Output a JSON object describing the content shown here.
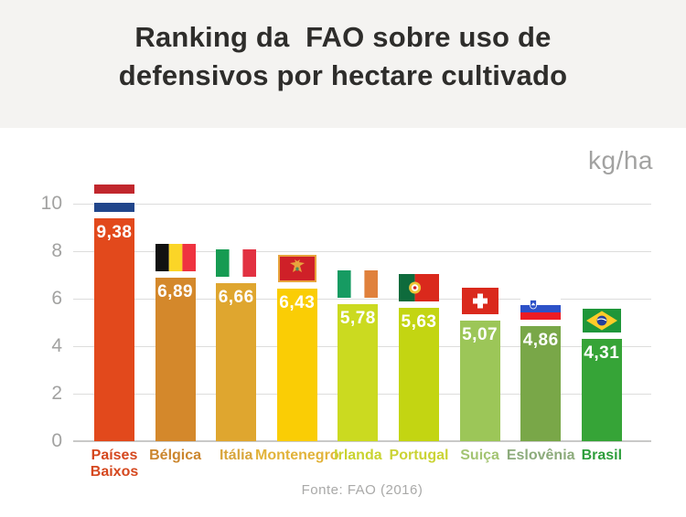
{
  "header": {
    "title_line1": "Ranking da  FAO sobre uso de",
    "title_line2": "defensivos por hectare cultivado"
  },
  "chart": {
    "unit_label": "kg/ha",
    "source": "Fonte: FAO (2016)"
  },
  "colors": {
    "header_bg": "#F4F3F1",
    "title_text": "#2E2D2B",
    "muted_text": "#A2A2A1",
    "gridline": "#DDDDDC",
    "axis_line": "#C9C9C8",
    "value_text": "#FFFFFF"
  },
  "chart_data": {
    "type": "bar",
    "title": "Ranking da FAO sobre uso de defensivos por hectare cultivado",
    "unit": "kg/ha",
    "source": "Fonte: FAO (2016)",
    "xlabel": "",
    "ylabel": "kg/ha",
    "ylim": [
      0,
      10
    ],
    "yticks": [
      10,
      8,
      6,
      4,
      2,
      0
    ],
    "grid": true,
    "legend": false,
    "categories": [
      "Países Baixos",
      "Bélgica",
      "Itália",
      "Montenegro",
      "Irlanda",
      "Portugal",
      "Suiça",
      "Eslovênia",
      "Brasil"
    ],
    "values": [
      9.38,
      6.89,
      6.66,
      6.43,
      5.78,
      5.63,
      5.07,
      4.86,
      4.31
    ],
    "bars": [
      {
        "id": "paises-baixos",
        "label": "Países Baixos",
        "value": 9.38,
        "value_label": "9,38",
        "bar_color": "#E2491C",
        "label_color": "#D5481F",
        "flag": "netherlands",
        "bold": false
      },
      {
        "id": "belgica",
        "label": "Bélgica",
        "value": 6.89,
        "value_label": "6,89",
        "bar_color": "#D4882B",
        "label_color": "#CB862E",
        "flag": "belgium",
        "bold": false
      },
      {
        "id": "italia",
        "label": "Itália",
        "value": 6.66,
        "value_label": "6,66",
        "bar_color": "#DFA62F",
        "label_color": "#D8A53B",
        "flag": "italy",
        "bold": false
      },
      {
        "id": "montenegro",
        "label": "Montenegro",
        "value": 6.43,
        "value_label": "6,43",
        "bar_color": "#FACD05",
        "label_color": "#E2B33A",
        "flag": "montenegro",
        "bold": false
      },
      {
        "id": "irlanda",
        "label": "Irlanda",
        "value": 5.78,
        "value_label": "5,78",
        "bar_color": "#CBDA20",
        "label_color": "#C9D32F",
        "flag": "ireland",
        "bold": false
      },
      {
        "id": "portugal",
        "label": "Portugal",
        "value": 5.63,
        "value_label": "5,63",
        "bar_color": "#C3D512",
        "label_color": "#CBD334",
        "flag": "portugal",
        "bold": false
      },
      {
        "id": "suica",
        "label": "Suiça",
        "value": 5.07,
        "value_label": "5,07",
        "bar_color": "#9CC658",
        "label_color": "#A3C472",
        "flag": "switzerland",
        "bold": false
      },
      {
        "id": "eslovenia",
        "label": "Eslovênia",
        "value": 4.86,
        "value_label": "4,86",
        "bar_color": "#79A748",
        "label_color": "#8CAB7B",
        "flag": "slovenia",
        "bold": false
      },
      {
        "id": "brasil",
        "label": "Brasil",
        "value": 4.31,
        "value_label": "4,31",
        "bar_color": "#36A437",
        "label_color": "#2E9E3C",
        "flag": "brazil",
        "bold": true
      }
    ]
  }
}
